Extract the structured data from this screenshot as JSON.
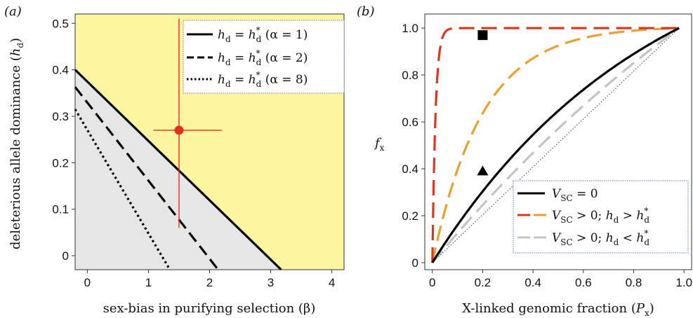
{
  "chart_data": [
    {
      "panel": "(a)",
      "type": "line",
      "xlabel": "sex-bias in purifying selection (β)",
      "ylabel": "deleterious allele dominance (h_d)",
      "xlim": [
        -0.2,
        4.2
      ],
      "ylim": [
        -0.03,
        0.52
      ],
      "xticks": [
        "0",
        "1",
        "2",
        "3",
        "4"
      ],
      "yticks": [
        "0",
        "0.1",
        "0.2",
        "0.3",
        "0.4",
        "0.5"
      ],
      "regions": [
        {
          "fill": "#fdf5a0",
          "where": "above h_d*(α = 1) line"
        },
        {
          "fill": "#e6e6e6",
          "where": "below h_d*(α = 1) line"
        }
      ],
      "series": [
        {
          "name": "h_d = h_d* (α = 1)",
          "style": "solid",
          "color": "#000000",
          "x": [
            -0.2,
            3.17
          ],
          "y": [
            0.4,
            -0.03
          ]
        },
        {
          "name": "h_d = h_d* (α = 2)",
          "style": "dashed",
          "color": "#000000",
          "x": [
            -0.2,
            2.14
          ],
          "y": [
            0.363,
            -0.03
          ]
        },
        {
          "name": "h_d = h_d* (α = 8)",
          "style": "dotted",
          "color": "#000000",
          "x": [
            -0.2,
            1.35
          ],
          "y": [
            0.315,
            -0.03
          ]
        }
      ],
      "point": {
        "x": 1.5,
        "y": 0.27,
        "xerr": [
          1.08,
          2.2
        ],
        "yerr": [
          0.06,
          0.51
        ],
        "color": "#e0301e"
      },
      "legend": {
        "position": "top-right"
      }
    },
    {
      "panel": "(b)",
      "type": "line",
      "xlabel": "X-linked genomic fraction (P_x)",
      "ylabel": "f_x",
      "xlim": [
        -0.03,
        1.03
      ],
      "ylim": [
        -0.03,
        1.06
      ],
      "xticks": [
        "0",
        "0.2",
        "0.4",
        "0.6",
        "0.8",
        "1.0"
      ],
      "yticks": [
        "0",
        "0.2",
        "0.4",
        "0.6",
        "0.8",
        "1.0"
      ],
      "series": [
        {
          "name": "V_SC = 0",
          "style": "solid",
          "color": "#000000",
          "curve_k": 1.15
        },
        {
          "name": "V_SC > 0; h_d > h_d*",
          "style": "dashed",
          "color": "#d9381e",
          "curve_k": 80
        },
        {
          "name": "V_SC > 0; h_d > h_d*",
          "style": "dashed",
          "color": "#e8a030",
          "curve_k": 5.0
        },
        {
          "name": "V_SC > 0; h_d < h_d*",
          "style": "dashed",
          "color": "#c4c4c4",
          "curve_k": 0.5
        },
        {
          "name": "",
          "style": "dotted",
          "color": "#333333",
          "curve_k": 0
        }
      ],
      "markers": [
        {
          "shape": "square",
          "x": 0.2,
          "y": 0.97
        },
        {
          "shape": "triangle",
          "x": 0.2,
          "y": 0.39
        }
      ],
      "legend": {
        "position": "bottom-right"
      }
    }
  ],
  "legend_a": [
    {
      "base": "h",
      "sub": "d",
      "mid": " = ",
      "base2": "h",
      "sup2": "*",
      "sub2": "d",
      "tail": " (α = 1)"
    },
    {
      "base": "h",
      "sub": "d",
      "mid": " = ",
      "base2": "h",
      "sup2": "*",
      "sub2": "d",
      "tail": " (α = 2)"
    },
    {
      "base": "h",
      "sub": "d",
      "mid": " = ",
      "base2": "h",
      "sup2": "*",
      "sub2": "d",
      "tail": " (α = 8)"
    }
  ],
  "legend_b": [
    {
      "base": "V",
      "sub": "SC",
      "tail": " = 0"
    },
    {
      "base": "V",
      "sub": "SC",
      "tail": " > 0; ",
      "base2": "h",
      "sub2": "d",
      "mid2": " > ",
      "base3": "h",
      "sup3": "*",
      "sub3": "d"
    },
    {
      "base": "V",
      "sub": "SC",
      "tail": " > 0; ",
      "base2": "h",
      "sub2": "d",
      "mid2": " < ",
      "base3": "h",
      "sup3": "*",
      "sub3": "d"
    }
  ],
  "labels": {
    "panel_a": "(a)",
    "panel_b": "(b)",
    "xlabel_a": "sex-bias in purifying selection (β)",
    "ylabel_a_main": "deleterious allele dominance (",
    "ylabel_a_var": "h",
    "ylabel_a_sub": "d",
    "ylabel_a_end": ")",
    "xlabel_b_main": "X-linked genomic fraction (",
    "xlabel_b_var": "P",
    "xlabel_b_sub": "x",
    "xlabel_b_end": ")",
    "ylabel_b_var": "f",
    "ylabel_b_sub": "x"
  }
}
